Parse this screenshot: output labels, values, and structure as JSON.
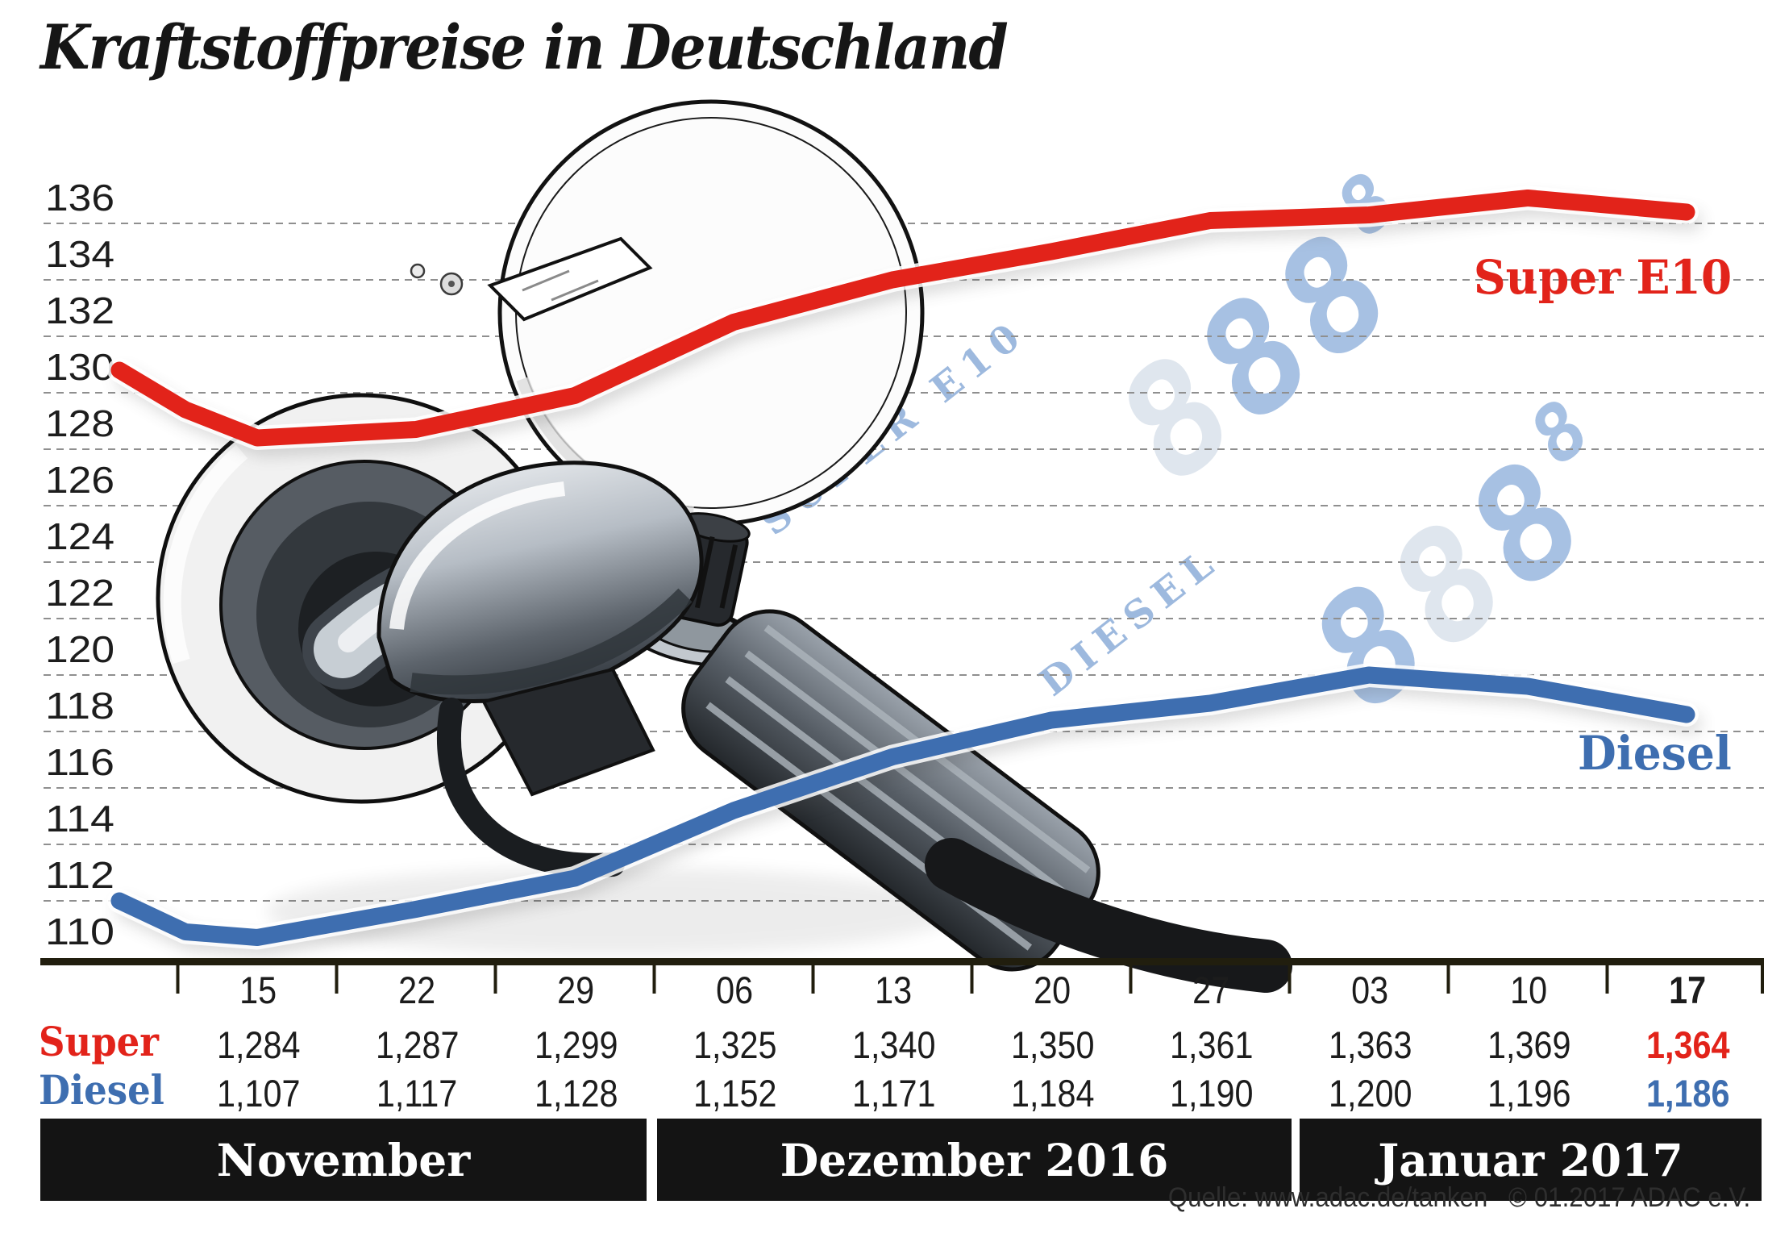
{
  "title": "Kraftstoffpreise in Deutschland",
  "chart_data": {
    "type": "line",
    "title": "Kraftstoffpreise in Deutschland",
    "y_axis": {
      "ticks": [
        136,
        134,
        132,
        130,
        128,
        126,
        124,
        122,
        120,
        118,
        116,
        114,
        112,
        110
      ],
      "ylim": [
        110,
        137
      ],
      "gridlines": "dashed"
    },
    "categories": [
      "15",
      "22",
      "29",
      "06",
      "13",
      "20",
      "27",
      "03",
      "10",
      "17"
    ],
    "months": [
      "November",
      "Dezember 2016",
      "Januar 2017"
    ],
    "series": [
      {
        "name": "Super E10",
        "color": "#e2231a",
        "values": [
          128.4,
          128.7,
          129.9,
          132.5,
          134.0,
          135.0,
          136.1,
          136.3,
          136.9,
          136.4
        ],
        "lead_in": [
          130.8,
          129.4
        ]
      },
      {
        "name": "Diesel",
        "color": "#3e6eb0",
        "values": [
          110.7,
          111.7,
          112.8,
          115.2,
          117.1,
          118.4,
          119.0,
          120.0,
          119.6,
          118.6
        ],
        "lead_in": [
          112.0,
          110.9
        ]
      }
    ],
    "legend_position": "line-end-labels"
  },
  "table": {
    "dates": [
      "15",
      "22",
      "29",
      "06",
      "13",
      "20",
      "27",
      "03",
      "10",
      "17"
    ],
    "rows": [
      {
        "label": "Super",
        "values": [
          "1,284",
          "1,287",
          "1,299",
          "1,325",
          "1,340",
          "1,350",
          "1,361",
          "1,363",
          "1,369",
          "1,364"
        ]
      },
      {
        "label": "Diesel",
        "values": [
          "1,107",
          "1,117",
          "1,128",
          "1,152",
          "1,171",
          "1,184",
          "1,190",
          "1,200",
          "1,196",
          "1,186"
        ]
      }
    ]
  },
  "labels": {
    "super_line": "Super E10",
    "diesel_line": "Diesel",
    "super_row": "Super",
    "diesel_row": "Diesel"
  },
  "months": {
    "november": "November",
    "dezember": "Dezember 2016",
    "januar": "Januar 2017"
  },
  "board": {
    "row1_label": "SUPER E10",
    "row2_label": "DIESEL",
    "digit_ghost": "8",
    "digits_lit": "88",
    "digit_sup": "8"
  },
  "source": {
    "label": "Quelle: www.adac.de/tanken",
    "copyright": "© 01.2017  ADAC e.V."
  },
  "colors": {
    "super": "#e2231a",
    "diesel": "#3e6eb0",
    "gridline": "#8f8f8f",
    "axis": "#211e0e",
    "band_bg": "#141414",
    "board_lit": "#a7c1e3",
    "board_ghost": "#dfe6ee"
  }
}
